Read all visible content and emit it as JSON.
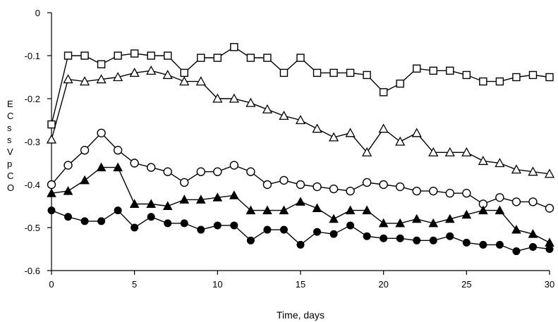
{
  "chart_data": {
    "type": "line",
    "title": "",
    "xlabel": "Time, days",
    "ylabel": "E C s s V p C O",
    "xlim": [
      0,
      30
    ],
    "ylim": [
      -0.6,
      0
    ],
    "x_ticks": [
      "0",
      "5",
      "10",
      "15",
      "20",
      "25",
      "30"
    ],
    "y_ticks": [
      "0",
      "-0.1",
      "-0.2",
      "-0.3",
      "-0.4",
      "-0.5",
      "-0.6"
    ],
    "grid": false,
    "legend": "none",
    "series": [
      {
        "marker": "open-square",
        "x": [
          0,
          1,
          2,
          3,
          4,
          5,
          6,
          7,
          8,
          9,
          10,
          11,
          12,
          13,
          14,
          15,
          16,
          17,
          18,
          19,
          20,
          21,
          22,
          23,
          24,
          25,
          26,
          27,
          28,
          29,
          30
        ],
        "values": [
          -0.26,
          -0.1,
          -0.1,
          -0.12,
          -0.1,
          -0.095,
          -0.1,
          -0.1,
          -0.14,
          -0.105,
          -0.105,
          -0.08,
          -0.105,
          -0.105,
          -0.14,
          -0.105,
          -0.14,
          -0.14,
          -0.14,
          -0.145,
          -0.185,
          -0.165,
          -0.13,
          -0.135,
          -0.135,
          -0.145,
          -0.16,
          -0.16,
          -0.15,
          -0.145,
          -0.15
        ]
      },
      {
        "marker": "open-triangle",
        "x": [
          0,
          1,
          2,
          3,
          4,
          5,
          6,
          7,
          8,
          9,
          10,
          11,
          12,
          13,
          14,
          15,
          16,
          17,
          18,
          19,
          20,
          21,
          22,
          23,
          24,
          25,
          26,
          27,
          28,
          29,
          30
        ],
        "values": [
          -0.295,
          -0.155,
          -0.16,
          -0.155,
          -0.15,
          -0.14,
          -0.135,
          -0.145,
          -0.16,
          -0.16,
          -0.2,
          -0.2,
          -0.21,
          -0.225,
          -0.24,
          -0.25,
          -0.27,
          -0.29,
          -0.28,
          -0.325,
          -0.27,
          -0.3,
          -0.28,
          -0.325,
          -0.325,
          -0.325,
          -0.345,
          -0.35,
          -0.365,
          -0.37,
          -0.375
        ]
      },
      {
        "marker": "open-circle",
        "x": [
          0,
          1,
          2,
          3,
          4,
          5,
          6,
          7,
          8,
          9,
          10,
          11,
          12,
          13,
          14,
          15,
          16,
          17,
          18,
          19,
          20,
          21,
          22,
          23,
          24,
          25,
          26,
          27,
          28,
          29,
          30
        ],
        "values": [
          -0.4,
          -0.355,
          -0.32,
          -0.28,
          -0.32,
          -0.35,
          -0.36,
          -0.37,
          -0.395,
          -0.37,
          -0.37,
          -0.355,
          -0.37,
          -0.4,
          -0.39,
          -0.4,
          -0.405,
          -0.41,
          -0.415,
          -0.395,
          -0.4,
          -0.405,
          -0.415,
          -0.415,
          -0.42,
          -0.42,
          -0.445,
          -0.43,
          -0.44,
          -0.44,
          -0.455
        ]
      },
      {
        "marker": "filled-triangle",
        "x": [
          0,
          1,
          2,
          3,
          4,
          5,
          6,
          7,
          8,
          9,
          10,
          11,
          12,
          13,
          14,
          15,
          16,
          17,
          18,
          19,
          20,
          21,
          22,
          23,
          24,
          25,
          26,
          27,
          28,
          29,
          30
        ],
        "values": [
          -0.42,
          -0.415,
          -0.39,
          -0.36,
          -0.36,
          -0.445,
          -0.445,
          -0.45,
          -0.435,
          -0.435,
          -0.43,
          -0.425,
          -0.46,
          -0.46,
          -0.46,
          -0.44,
          -0.455,
          -0.48,
          -0.46,
          -0.46,
          -0.49,
          -0.49,
          -0.48,
          -0.49,
          -0.48,
          -0.47,
          -0.46,
          -0.46,
          -0.505,
          -0.515,
          -0.535
        ]
      },
      {
        "marker": "filled-circle",
        "x": [
          0,
          1,
          2,
          3,
          4,
          5,
          6,
          7,
          8,
          9,
          10,
          11,
          12,
          13,
          14,
          15,
          16,
          17,
          18,
          19,
          20,
          21,
          22,
          23,
          24,
          25,
          26,
          27,
          28,
          29,
          30
        ],
        "values": [
          -0.46,
          -0.475,
          -0.485,
          -0.485,
          -0.46,
          -0.5,
          -0.475,
          -0.49,
          -0.49,
          -0.505,
          -0.495,
          -0.495,
          -0.53,
          -0.505,
          -0.505,
          -0.54,
          -0.51,
          -0.515,
          -0.495,
          -0.52,
          -0.525,
          -0.525,
          -0.53,
          -0.53,
          -0.52,
          -0.535,
          -0.54,
          -0.54,
          -0.555,
          -0.545,
          -0.55
        ]
      }
    ]
  }
}
